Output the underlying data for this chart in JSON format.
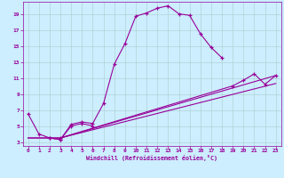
{
  "xlabel": "Windchill (Refroidissement éolien,°C)",
  "bg_color": "#cceeff",
  "line_color": "#990099",
  "grid_color": "#aacccc",
  "xlim": [
    -0.5,
    23.5
  ],
  "ylim": [
    2.5,
    20.5
  ],
  "xticks": [
    0,
    1,
    2,
    3,
    4,
    5,
    6,
    7,
    8,
    9,
    10,
    11,
    12,
    13,
    14,
    15,
    16,
    17,
    18,
    19,
    20,
    21,
    22,
    23
  ],
  "yticks": [
    3,
    5,
    7,
    9,
    11,
    13,
    15,
    17,
    19
  ],
  "series1_x": [
    0,
    1,
    2,
    3,
    4,
    5,
    6,
    7,
    8,
    9,
    10,
    11,
    12,
    13,
    14,
    15,
    16,
    17,
    18
  ],
  "series1_y": [
    6.5,
    4.0,
    3.5,
    3.3,
    5.2,
    5.5,
    5.3,
    7.8,
    12.7,
    15.3,
    18.7,
    19.1,
    19.7,
    20.0,
    19.0,
    18.8,
    16.5,
    14.8,
    13.5
  ],
  "series2_x": [
    2,
    3,
    4,
    5,
    6
  ],
  "series2_y": [
    3.5,
    3.3,
    5.0,
    5.3,
    5.0
  ],
  "series3_x": [
    0,
    3,
    23
  ],
  "series3_y": [
    3.5,
    3.5,
    11.3
  ],
  "series4_x": [
    0,
    3,
    23
  ],
  "series4_y": [
    3.5,
    3.5,
    10.3
  ],
  "series5_x": [
    3,
    19,
    20,
    21,
    22,
    23
  ],
  "series5_y": [
    3.5,
    10.0,
    10.7,
    11.5,
    10.2,
    11.3
  ]
}
